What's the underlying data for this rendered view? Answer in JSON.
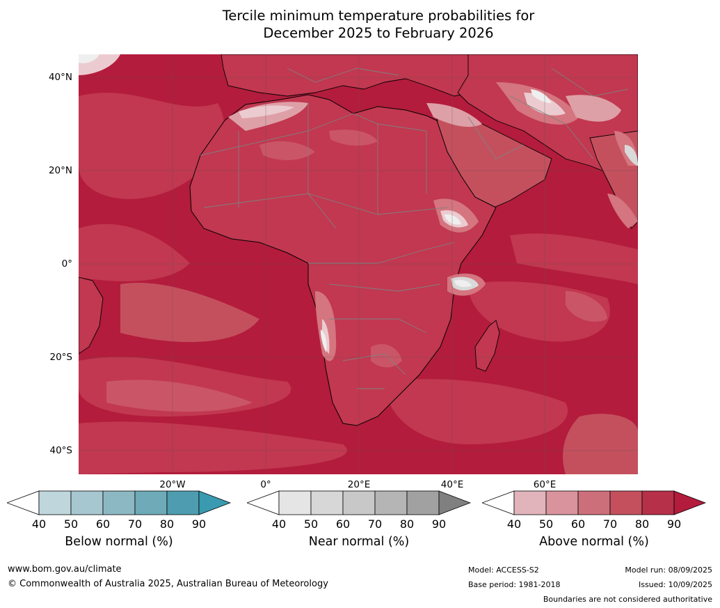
{
  "title": {
    "line1": "Tercile minimum temperature probabilities for",
    "line2": "December 2025 to February 2026"
  },
  "map": {
    "lat_labels": [
      "40°N",
      "20°N",
      "0°",
      "20°S",
      "40°S"
    ],
    "lon_labels": [
      "20°W",
      "0°",
      "20°E",
      "40°E",
      "60°E"
    ],
    "colors": {
      "above_90": "#b31c3c",
      "above_80": "#c13850",
      "above_70": "#ca5566",
      "above_60": "#d4757f",
      "above_50": "#dea0a7",
      "above_40": "#eccbd0",
      "near_50": "#d9d9d9",
      "near_40": "#efefef",
      "coastline": "#000000",
      "borders": "#808080",
      "grid": "#555555"
    }
  },
  "colorbars": [
    {
      "id": "below",
      "title": "Below normal (%)",
      "ticks": [
        "40",
        "50",
        "60",
        "70",
        "80",
        "90"
      ],
      "colors": [
        "#bfd6dd",
        "#a6c7cf",
        "#8cb8c3",
        "#6eaab8",
        "#4e9caf",
        "#3a9aaf"
      ]
    },
    {
      "id": "near",
      "title": "Near normal (%)",
      "ticks": [
        "40",
        "50",
        "60",
        "70",
        "80",
        "90"
      ],
      "colors": [
        "#e5e5e5",
        "#d7d7d7",
        "#c8c8c8",
        "#b5b5b5",
        "#a1a1a1",
        "#808080"
      ]
    },
    {
      "id": "above",
      "title": "Above normal (%)",
      "ticks": [
        "40",
        "50",
        "60",
        "70",
        "80",
        "90"
      ],
      "colors": [
        "#e1b4bb",
        "#d8939c",
        "#cd6f7a",
        "#c4505e",
        "#b73049",
        "#b31c3c"
      ]
    }
  ],
  "footer": {
    "website": "www.bom.gov.au/climate",
    "copyright": "© Commonwealth of Australia 2025, Australian Bureau of Meteorology",
    "model": "Model: ACCESS-S2",
    "base_period": "Base period: 1981-2018",
    "model_run": "Model run: 08/09/2025",
    "issued": "Issued: 10/09/2025",
    "disclaimer": "Boundaries are not considered authoritative"
  }
}
